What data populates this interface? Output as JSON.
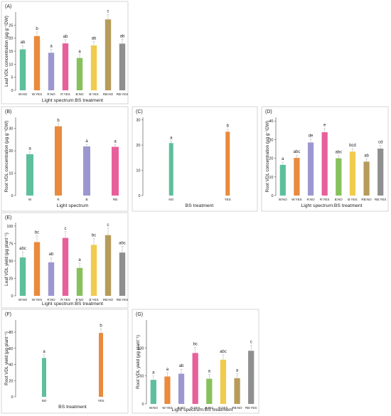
{
  "figure": {
    "colors": {
      "W": "#5dbf9b",
      "R": "#9c98cf",
      "B": "#86c15b",
      "RB": "#b79b5a",
      "W-bs": "#e98a3c",
      "R-bs": "#e7609b",
      "B-bs": "#f0cb4d",
      "RB-bs": "#8f8f8f",
      "Wsingle": "#5dbf9b",
      "Rsingle": "#e98a3c",
      "Bsingle": "#9c98cf",
      "RBsingle": "#e7609b",
      "axis": "#444444",
      "text": "#222222",
      "panel_border": "#cccccc"
    }
  },
  "chart_data": [
    {
      "panel": "(A)",
      "type": "bar",
      "ylabel": "Leaf VDL concentration (µg g⁻¹DW)",
      "xlabel": "Light spectrum:BS treatment",
      "categories": [
        "W:NO",
        "W:YES",
        "R:NO",
        "R:YES",
        "B:NO",
        "B:YES",
        "RB:NO",
        "RB:YES"
      ],
      "values": [
        15.7,
        20.8,
        14.4,
        18.0,
        12.4,
        17.2,
        27.2,
        17.9
      ],
      "errors": [
        1.5,
        1.6,
        1.3,
        1.4,
        1.3,
        1.5,
        1.8,
        1.6
      ],
      "letters": [
        "ab",
        "b",
        "a",
        "ab",
        "a",
        "ab",
        "c",
        "ab"
      ],
      "color_keys": [
        "W",
        "W-bs",
        "R",
        "R-bs",
        "B",
        "B-bs",
        "RB",
        "RB-bs"
      ],
      "yticks": [
        0,
        5,
        10,
        15,
        20,
        25
      ],
      "ylim": [
        0,
        30
      ]
    },
    {
      "panel": "(B)",
      "type": "bar",
      "ylabel": "Root VDL concentration (µg g⁻¹DW)",
      "xlabel": "Light spectrum",
      "categories": [
        "W",
        "R",
        "B",
        "RB"
      ],
      "values": [
        18.5,
        31.0,
        22.0,
        21.8
      ],
      "errors": [
        1.0,
        1.2,
        0.9,
        1.0
      ],
      "letters": [
        "a",
        "b",
        "a",
        "a"
      ],
      "color_keys": [
        "Wsingle",
        "Rsingle",
        "Bsingle",
        "RBsingle"
      ],
      "yticks": [
        0,
        10,
        20,
        30
      ],
      "ylim": [
        0,
        35
      ]
    },
    {
      "panel": "(C)",
      "type": "bar",
      "ylabel": "",
      "xlabel": "BS treatment",
      "categories": [
        "NO",
        "YES"
      ],
      "values": [
        20.8,
        25.3
      ],
      "errors": [
        0.8,
        1.0
      ],
      "letters": [
        "a",
        "b"
      ],
      "color_keys": [
        "Wsingle",
        "Rsingle"
      ],
      "yticks": [
        0,
        10,
        20,
        30
      ],
      "ylim": [
        0,
        31
      ]
    },
    {
      "panel": "(D)",
      "type": "bar",
      "ylabel": "Root VDL concentration (µg g⁻¹DW)",
      "xlabel": "Light spectrum:BS treatment",
      "categories": [
        "W:NO",
        "W:YES",
        "R:NO",
        "R:YES",
        "B:NO",
        "B:YES",
        "RB:NO",
        "RB:YES"
      ],
      "values": [
        16.5,
        20.2,
        28.5,
        34.0,
        20.0,
        23.6,
        18.2,
        25.2
      ],
      "errors": [
        1.4,
        1.5,
        1.8,
        2.0,
        1.5,
        1.6,
        1.4,
        1.7
      ],
      "letters": [
        "a",
        "abc",
        "de",
        "e",
        "abc",
        "bcd",
        "ab",
        "cd"
      ],
      "color_keys": [
        "W",
        "W-bs",
        "R",
        "R-bs",
        "B",
        "B-bs",
        "RB",
        "RB-bs"
      ],
      "yticks": [
        0,
        10,
        20,
        30,
        40
      ],
      "ylim": [
        0,
        42
      ]
    },
    {
      "panel": "(E)",
      "type": "bar",
      "ylabel": "Leaf VDL yield (µg plant⁻¹)",
      "xlabel": "Light spectrum:BS treatment",
      "categories": [
        "W:NO",
        "W:YES",
        "R:NO",
        "R:YES",
        "B:NO",
        "B:YES",
        "RB:NO",
        "RB:YES"
      ],
      "values": [
        55,
        77,
        48,
        83,
        40,
        73,
        87,
        62
      ],
      "errors": [
        8,
        9,
        7,
        9,
        7,
        9,
        10,
        9
      ],
      "letters": [
        "abc",
        "bc",
        "ab",
        "c",
        "a",
        "bc",
        "c",
        "abc"
      ],
      "color_keys": [
        "W",
        "W-bs",
        "R",
        "R-bs",
        "B",
        "B-bs",
        "RB",
        "RB-bs"
      ],
      "yticks": [
        0,
        25,
        50,
        75,
        100
      ],
      "ylim": [
        0,
        105
      ]
    },
    {
      "panel": "(F)",
      "type": "bar",
      "ylabel": "Root VDL yield (µg plant⁻¹)",
      "xlabel": "BS treatment",
      "categories": [
        "NO",
        "YES"
      ],
      "values": [
        48,
        79
      ],
      "errors": [
        4,
        5
      ],
      "letters": [
        "a",
        "b"
      ],
      "color_keys": [
        "Wsingle",
        "Rsingle"
      ],
      "yticks": [
        0,
        20,
        40,
        60,
        80
      ],
      "ylim": [
        0,
        95
      ]
    },
    {
      "panel": "(G)",
      "type": "bar",
      "ylabel": "Root VDL yield (µg plant⁻¹)",
      "xlabel": "Light spectrum:BS treatment",
      "categories": [
        "W:NO",
        "W:YES",
        "R:NO",
        "R:YES",
        "B:NO",
        "B:YES",
        "RB:NO",
        "RB:YES"
      ],
      "values": [
        43,
        49,
        54,
        91,
        45,
        79,
        46,
        95
      ],
      "errors": [
        7,
        7,
        8,
        10,
        8,
        9,
        8,
        10
      ],
      "letters": [
        "a",
        "a",
        "ab",
        "bc",
        "a",
        "abc",
        "a",
        "c"
      ],
      "color_keys": [
        "W",
        "W-bs",
        "R",
        "R-bs",
        "B",
        "B-bs",
        "RB",
        "RB-bs"
      ],
      "yticks": [
        0,
        50,
        100
      ],
      "ylim": [
        0,
        150
      ]
    }
  ]
}
